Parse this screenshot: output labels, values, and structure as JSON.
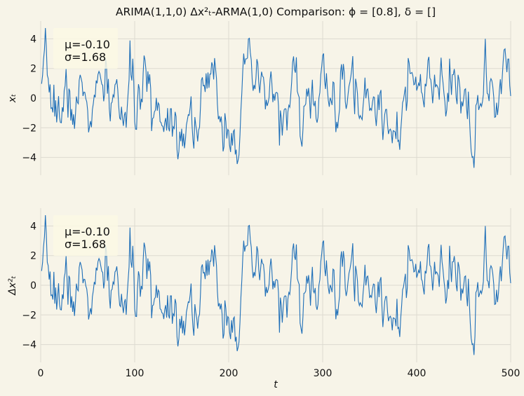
{
  "chart_data": {
    "type": "line",
    "title": "ARIMA(1,1,0) Δx²ₜ-ARMA(1,0) Comparison: ϕ = [0.8], δ = []",
    "xlabel": "t",
    "xlim": [
      0,
      500
    ],
    "xticks": [
      0,
      100,
      200,
      300,
      400,
      500
    ],
    "line_color": "#1f6fb8",
    "background_color": "#f7f4e8",
    "grid": true,
    "generator": {
      "n": 500,
      "phi": 0.8,
      "seed": 7,
      "mean": -0.1,
      "std": 1.68
    },
    "panels": [
      {
        "ylabel": "xₜ",
        "ylim": [
          -5.2,
          5.2
        ],
        "yticks": [
          -4,
          -2,
          0,
          2,
          4
        ],
        "stats": {
          "mu_label": "μ=-0.10",
          "sigma_label": "σ=1.68"
        },
        "show_xticks": false
      },
      {
        "ylabel": "Δx²ₜ",
        "ylim": [
          -5.2,
          5.2
        ],
        "yticks": [
          -4,
          -2,
          0,
          2,
          4
        ],
        "stats": {
          "mu_label": "μ=-0.10",
          "sigma_label": "σ=1.68"
        },
        "show_xticks": true
      }
    ]
  }
}
